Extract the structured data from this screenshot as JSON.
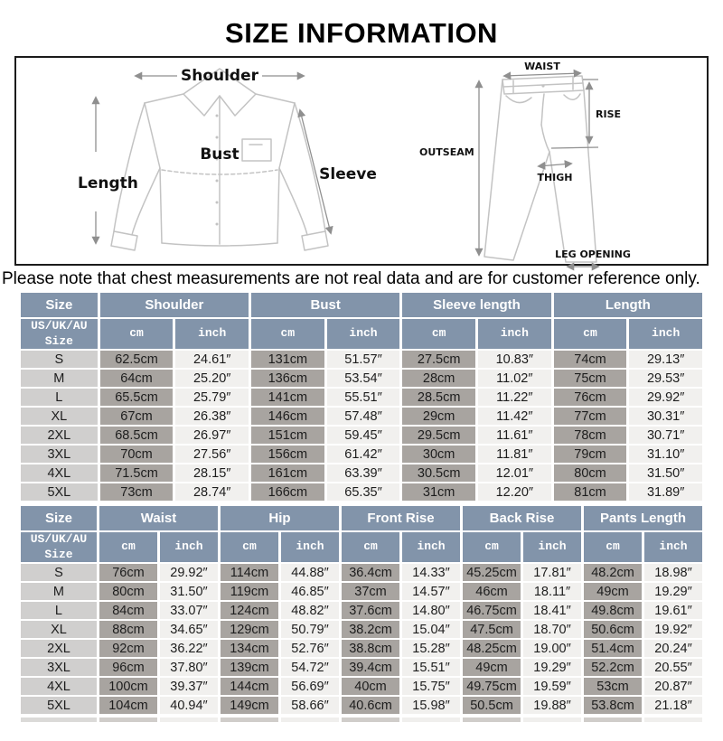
{
  "page": {
    "title": "SIZE INFORMATION",
    "note": "Please note that chest measurements are not real data and are for customer reference only."
  },
  "colors": {
    "header_bg": "#8294aa",
    "size_cell_bg": "#d0cfce",
    "cm_cell_bg": "#a8a4a0",
    "inch_cell_bg": "#f1f0ee",
    "sketch_line": "#c3c3c3",
    "arrow_line": "#8f8f8f",
    "text_dark": "#1c1c1c"
  },
  "diagram": {
    "shirt": {
      "shoulder": "Shoulder",
      "length": "Length",
      "bust": "Bust",
      "sleeve": "Sleeve"
    },
    "pants": {
      "waist": "WAIST",
      "rise": "RISE",
      "outseam": "OUTSEAM",
      "thigh": "THIGH",
      "leg_opening": "LEG OPENING"
    }
  },
  "top_table": {
    "size_header": "Size",
    "size_subheader": "US/UK/AU\nSize",
    "unit_cm": "cm",
    "unit_inch": "inch",
    "groups": [
      "Shoulder",
      "Bust",
      "Sleeve length",
      "Length"
    ],
    "rows": [
      {
        "size": "S",
        "values": [
          "62.5cm",
          "24.61″",
          "131cm",
          "51.57″",
          "27.5cm",
          "10.83″",
          "74cm",
          "29.13″"
        ]
      },
      {
        "size": "M",
        "values": [
          "64cm",
          "25.20″",
          "136cm",
          "53.54″",
          "28cm",
          "11.02″",
          "75cm",
          "29.53″"
        ]
      },
      {
        "size": "L",
        "values": [
          "65.5cm",
          "25.79″",
          "141cm",
          "55.51″",
          "28.5cm",
          "11.22″",
          "76cm",
          "29.92″"
        ]
      },
      {
        "size": "XL",
        "values": [
          "67cm",
          "26.38″",
          "146cm",
          "57.48″",
          "29cm",
          "11.42″",
          "77cm",
          "30.31″"
        ]
      },
      {
        "size": "2XL",
        "values": [
          "68.5cm",
          "26.97″",
          "151cm",
          "59.45″",
          "29.5cm",
          "11.61″",
          "78cm",
          "30.71″"
        ]
      },
      {
        "size": "3XL",
        "values": [
          "70cm",
          "27.56″",
          "156cm",
          "61.42″",
          "30cm",
          "11.81″",
          "79cm",
          "31.10″"
        ]
      },
      {
        "size": "4XL",
        "values": [
          "71.5cm",
          "28.15″",
          "161cm",
          "63.39″",
          "30.5cm",
          "12.01″",
          "80cm",
          "31.50″"
        ]
      },
      {
        "size": "5XL",
        "values": [
          "73cm",
          "28.74″",
          "166cm",
          "65.35″",
          "31cm",
          "12.20″",
          "81cm",
          "31.89″"
        ]
      }
    ]
  },
  "bottom_table": {
    "size_header": "Size",
    "size_subheader": "US/UK/AU\nSize",
    "unit_cm": "cm",
    "unit_inch": "inch",
    "groups": [
      "Waist",
      "Hip",
      "Front Rise",
      "Back Rise",
      "Pants Length"
    ],
    "rows": [
      {
        "size": "S",
        "values": [
          "76cm",
          "29.92″",
          "114cm",
          "44.88″",
          "36.4cm",
          "14.33″",
          "45.25cm",
          "17.81″",
          "48.2cm",
          "18.98″"
        ]
      },
      {
        "size": "M",
        "values": [
          "80cm",
          "31.50″",
          "119cm",
          "46.85″",
          "37cm",
          "14.57″",
          "46cm",
          "18.11″",
          "49cm",
          "19.29″"
        ]
      },
      {
        "size": "L",
        "values": [
          "84cm",
          "33.07″",
          "124cm",
          "48.82″",
          "37.6cm",
          "14.80″",
          "46.75cm",
          "18.41″",
          "49.8cm",
          "19.61″"
        ]
      },
      {
        "size": "XL",
        "values": [
          "88cm",
          "34.65″",
          "129cm",
          "50.79″",
          "38.2cm",
          "15.04″",
          "47.5cm",
          "18.70″",
          "50.6cm",
          "19.92″"
        ]
      },
      {
        "size": "2XL",
        "values": [
          "92cm",
          "36.22″",
          "134cm",
          "52.76″",
          "38.8cm",
          "15.28″",
          "48.25cm",
          "19.00″",
          "51.4cm",
          "20.24″"
        ]
      },
      {
        "size": "3XL",
        "values": [
          "96cm",
          "37.80″",
          "139cm",
          "54.72″",
          "39.4cm",
          "15.51″",
          "49cm",
          "19.29″",
          "52.2cm",
          "20.55″"
        ]
      },
      {
        "size": "4XL",
        "values": [
          "100cm",
          "39.37″",
          "144cm",
          "56.69″",
          "40cm",
          "15.75″",
          "49.75cm",
          "19.59″",
          "53cm",
          "20.87″"
        ]
      },
      {
        "size": "5XL",
        "values": [
          "104cm",
          "40.94″",
          "149cm",
          "58.66″",
          "40.6cm",
          "15.98″",
          "50.5cm",
          "19.88″",
          "53.8cm",
          "21.18″"
        ]
      }
    ]
  }
}
